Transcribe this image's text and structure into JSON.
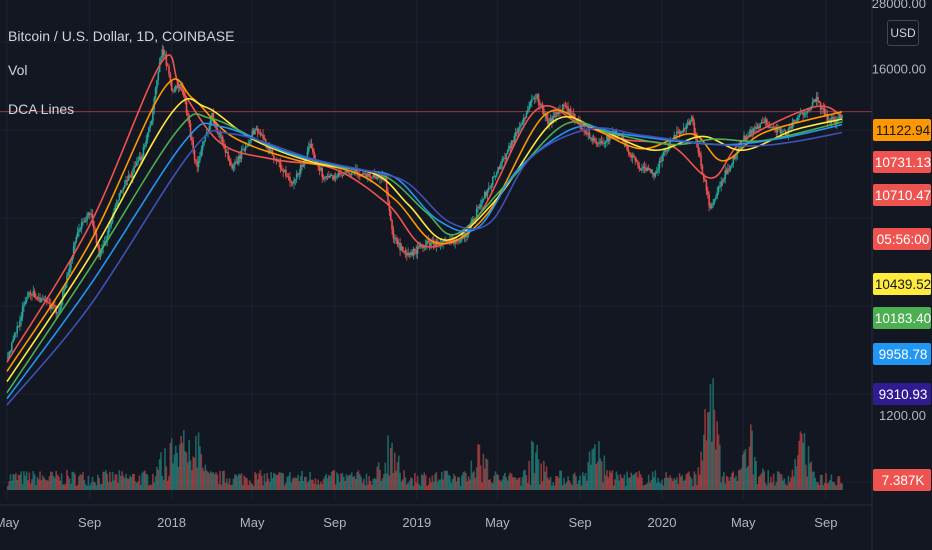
{
  "title": "Bitcoin / U.S. Dollar, 1D, COINBASE",
  "indicators": [
    "Vol",
    "DCA Lines"
  ],
  "currency_button": "USD",
  "chart_data": {
    "type": "line",
    "title": "Bitcoin / U.S. Dollar, 1D, COINBASE",
    "y_scale": "log",
    "x_range": [
      "2017-05-01",
      "2020-09-25"
    ],
    "y_range": [
      900,
      29000
    ],
    "y_ticks": [
      {
        "value": 28000,
        "label": "28000.00"
      },
      {
        "value": 16000,
        "label": "16000.00"
      },
      {
        "value": 1200,
        "label": "1200.00"
      }
    ],
    "x_ticks": [
      {
        "date": "2017-05-01",
        "label": "May"
      },
      {
        "date": "2017-09-01",
        "label": "Sep"
      },
      {
        "date": "2018-01-01",
        "label": "2018"
      },
      {
        "date": "2018-05-01",
        "label": "May"
      },
      {
        "date": "2018-09-01",
        "label": "Sep"
      },
      {
        "date": "2019-01-01",
        "label": "2019"
      },
      {
        "date": "2019-05-01",
        "label": "May"
      },
      {
        "date": "2019-09-01",
        "label": "Sep"
      },
      {
        "date": "2020-01-01",
        "label": "2020"
      },
      {
        "date": "2020-05-01",
        "label": "May"
      },
      {
        "date": "2020-09-01",
        "label": "Sep"
      }
    ],
    "price_line": 11122.94,
    "price_labels": [
      {
        "value": 11122.94,
        "label": "11122.94",
        "color": "#ff9800",
        "text_color": "#131722"
      },
      {
        "value": 10731.13,
        "label": "10731.13",
        "color": "#ef5350",
        "text_color": "#ffffff"
      },
      {
        "value": 10710.47,
        "label": "10710.47",
        "color": "#ef5350",
        "text_color": "#ffffff"
      },
      {
        "value": 10600,
        "label": "05:56:00",
        "color": "#ef5350",
        "text_color": "#ffffff"
      },
      {
        "value": 10439.52,
        "label": "10439.52",
        "color": "#ffeb3b",
        "text_color": "#131722"
      },
      {
        "value": 10183.4,
        "label": "10183.40",
        "color": "#4caf50",
        "text_color": "#ffffff"
      },
      {
        "value": 9958.78,
        "label": "9958.78",
        "color": "#2196f3",
        "text_color": "#ffffff"
      },
      {
        "value": 9310.93,
        "label": "9310.93",
        "color": "#311b92",
        "text_color": "#ffffff"
      },
      {
        "value": 7387,
        "label": "7.387K",
        "color": "#ef5350",
        "text_color": "#ffffff"
      }
    ],
    "price_series": {
      "name": "BTCUSD",
      "color": "#26a69a",
      "points": [
        [
          "2017-05-01",
          1350
        ],
        [
          "2017-06-01",
          2400
        ],
        [
          "2017-07-15",
          2000
        ],
        [
          "2017-08-15",
          4100
        ],
        [
          "2017-09-01",
          4700
        ],
        [
          "2017-09-15",
          3200
        ],
        [
          "2017-10-15",
          5500
        ],
        [
          "2017-11-15",
          7500
        ],
        [
          "2017-12-01",
          10500
        ],
        [
          "2017-12-17",
          19600
        ],
        [
          "2018-01-01",
          13400
        ],
        [
          "2018-01-15",
          14000
        ],
        [
          "2018-02-06",
          6900
        ],
        [
          "2018-03-01",
          10800
        ],
        [
          "2018-04-01",
          6800
        ],
        [
          "2018-05-05",
          9700
        ],
        [
          "2018-06-29",
          5900
        ],
        [
          "2018-07-25",
          8200
        ],
        [
          "2018-08-15",
          6300
        ],
        [
          "2018-10-01",
          6600
        ],
        [
          "2018-11-14",
          6300
        ],
        [
          "2018-11-25",
          3800
        ],
        [
          "2018-12-15",
          3200
        ],
        [
          "2019-01-15",
          3600
        ],
        [
          "2019-02-15",
          3600
        ],
        [
          "2019-03-15",
          3900
        ],
        [
          "2019-04-02",
          4900
        ],
        [
          "2019-05-15",
          8000
        ],
        [
          "2019-06-26",
          12900
        ],
        [
          "2019-07-15",
          10000
        ],
        [
          "2019-08-06",
          11800
        ],
        [
          "2019-09-24",
          8400
        ],
        [
          "2019-10-26",
          9300
        ],
        [
          "2019-11-25",
          7000
        ],
        [
          "2019-12-18",
          6500
        ],
        [
          "2020-01-15",
          8800
        ],
        [
          "2020-02-13",
          10400
        ],
        [
          "2020-03-12",
          4800
        ],
        [
          "2020-04-01",
          6400
        ],
        [
          "2020-04-30",
          8800
        ],
        [
          "2020-06-01",
          10200
        ],
        [
          "2020-07-01",
          9200
        ],
        [
          "2020-07-27",
          11000
        ],
        [
          "2020-08-17",
          12300
        ],
        [
          "2020-09-05",
          10200
        ],
        [
          "2020-09-25",
          10700
        ]
      ]
    },
    "series": [
      {
        "color": "#ef5350",
        "points": [
          [
            "2017-05-01",
            1300
          ],
          [
            "2017-09-01",
            4200
          ],
          [
            "2017-12-17",
            17000
          ],
          [
            "2018-01-15",
            13500
          ],
          [
            "2018-03-15",
            8500
          ],
          [
            "2018-06-01",
            7400
          ],
          [
            "2018-09-01",
            6800
          ],
          [
            "2018-11-20",
            5000
          ],
          [
            "2019-01-15",
            3500
          ],
          [
            "2019-04-01",
            4500
          ],
          [
            "2019-06-26",
            11200
          ],
          [
            "2019-09-01",
            10000
          ],
          [
            "2019-11-01",
            8800
          ],
          [
            "2020-01-15",
            8300
          ],
          [
            "2020-03-15",
            6300
          ],
          [
            "2020-05-01",
            8700
          ],
          [
            "2020-08-15",
            11600
          ],
          [
            "2020-09-25",
            10731.13
          ]
        ]
      },
      {
        "color": "#ff9800",
        "points": [
          [
            "2017-05-01",
            1200
          ],
          [
            "2017-09-01",
            3600
          ],
          [
            "2017-12-20",
            13500
          ],
          [
            "2018-02-01",
            12500
          ],
          [
            "2018-04-01",
            9000
          ],
          [
            "2018-07-01",
            7400
          ],
          [
            "2018-10-01",
            6600
          ],
          [
            "2018-12-01",
            5200
          ],
          [
            "2019-02-01",
            3600
          ],
          [
            "2019-04-15",
            4600
          ],
          [
            "2019-07-10",
            10800
          ],
          [
            "2019-09-15",
            9800
          ],
          [
            "2019-12-01",
            8100
          ],
          [
            "2020-02-15",
            9200
          ],
          [
            "2020-04-01",
            7300
          ],
          [
            "2020-06-01",
            9300
          ],
          [
            "2020-09-25",
            11122.94
          ]
        ]
      },
      {
        "color": "#ffeb3b",
        "points": [
          [
            "2017-05-01",
            1100
          ],
          [
            "2017-09-01",
            3200
          ],
          [
            "2018-01-01",
            11000
          ],
          [
            "2018-02-20",
            11600
          ],
          [
            "2018-05-01",
            8800
          ],
          [
            "2018-08-01",
            7200
          ],
          [
            "2018-11-01",
            6500
          ],
          [
            "2018-12-20",
            5000
          ],
          [
            "2019-02-15",
            3700
          ],
          [
            "2019-05-01",
            5300
          ],
          [
            "2019-07-25",
            10300
          ],
          [
            "2019-10-01",
            9500
          ],
          [
            "2019-12-20",
            8000
          ],
          [
            "2020-03-01",
            9000
          ],
          [
            "2020-05-01",
            8000
          ],
          [
            "2020-07-15",
            9500
          ],
          [
            "2020-09-25",
            10439.52
          ]
        ]
      },
      {
        "color": "#4caf50",
        "points": [
          [
            "2017-05-01",
            1000
          ],
          [
            "2017-09-01",
            2900
          ],
          [
            "2018-01-10",
            9500
          ],
          [
            "2018-03-01",
            10500
          ],
          [
            "2018-06-01",
            8200
          ],
          [
            "2018-09-01",
            7000
          ],
          [
            "2018-11-15",
            6400
          ],
          [
            "2019-01-15",
            4700
          ],
          [
            "2019-03-01",
            3900
          ],
          [
            "2019-05-15",
            6000
          ],
          [
            "2019-08-10",
            10000
          ],
          [
            "2019-10-20",
            9200
          ],
          [
            "2020-01-15",
            8400
          ],
          [
            "2020-03-20",
            8800
          ],
          [
            "2020-06-01",
            8700
          ],
          [
            "2020-09-25",
            10183.4
          ]
        ]
      },
      {
        "color": "#2196f3",
        "points": [
          [
            "2017-05-01",
            950
          ],
          [
            "2017-09-01",
            2500
          ],
          [
            "2018-01-20",
            8600
          ],
          [
            "2018-03-15",
            9800
          ],
          [
            "2018-07-01",
            7700
          ],
          [
            "2018-10-01",
            6800
          ],
          [
            "2018-12-01",
            6300
          ],
          [
            "2019-02-01",
            4400
          ],
          [
            "2019-04-01",
            4100
          ],
          [
            "2019-06-01",
            6800
          ],
          [
            "2019-08-25",
            9700
          ],
          [
            "2019-11-01",
            9200
          ],
          [
            "2020-02-01",
            8600
          ],
          [
            "2020-04-15",
            8400
          ],
          [
            "2020-07-01",
            8900
          ],
          [
            "2020-09-25",
            9958.78
          ]
        ]
      },
      {
        "color": "#3f51b5",
        "points": [
          [
            "2017-05-01",
            900
          ],
          [
            "2017-09-01",
            2100
          ],
          [
            "2018-02-01",
            8000
          ],
          [
            "2018-04-01",
            9200
          ],
          [
            "2018-08-01",
            7400
          ],
          [
            "2018-11-01",
            6600
          ],
          [
            "2018-12-20",
            6000
          ],
          [
            "2019-02-20",
            4300
          ],
          [
            "2019-04-20",
            4300
          ],
          [
            "2019-06-20",
            7500
          ],
          [
            "2019-09-15",
            9600
          ],
          [
            "2019-12-01",
            9100
          ],
          [
            "2020-03-01",
            8500
          ],
          [
            "2020-05-15",
            8300
          ],
          [
            "2020-07-15",
            8600
          ],
          [
            "2020-09-25",
            9310.93
          ]
        ]
      }
    ],
    "volume": {
      "name": "Vol",
      "peak_dates": [
        "2017-12-22",
        "2018-01-17",
        "2018-02-06",
        "2018-11-20",
        "2019-04-02",
        "2019-06-27",
        "2019-09-25",
        "2020-03-12",
        "2020-05-10",
        "2020-07-27"
      ]
    }
  }
}
